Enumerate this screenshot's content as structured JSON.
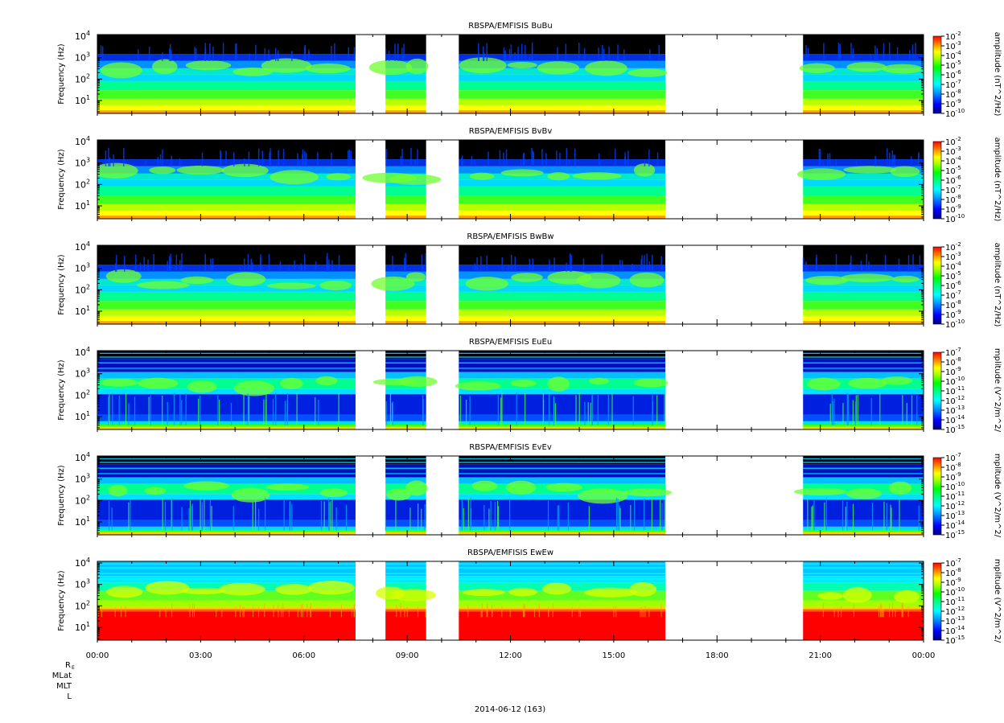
{
  "figure": {
    "date_label": "2014-06-12 (163)",
    "ephemeris_labels": [
      "RE",
      "MLat",
      "MLT",
      "L"
    ]
  },
  "chart_data": {
    "type": "heatmap",
    "x_axis": {
      "ticks": [
        "00:00",
        "03:00",
        "06:00",
        "09:00",
        "12:00",
        "15:00",
        "18:00",
        "21:00",
        "00:00"
      ],
      "range_hours": [
        0,
        24
      ]
    },
    "y_axis": {
      "label": "Frequency (Hz)",
      "scale": "log",
      "range_hz": [
        2.5,
        12000
      ],
      "ticks": [
        {
          "base": "10",
          "exp": "1"
        },
        {
          "base": "10",
          "exp": "2"
        },
        {
          "base": "10",
          "exp": "3"
        },
        {
          "base": "10",
          "exp": "4"
        }
      ]
    },
    "data_gaps_hours": [
      [
        7.5,
        8.37
      ],
      [
        9.55,
        10.5
      ],
      [
        16.5,
        20.5
      ]
    ],
    "colormap": [
      "#000080",
      "#0000ff",
      "#0080ff",
      "#00ffff",
      "#00ff80",
      "#00ff00",
      "#80ff00",
      "#ffff00",
      "#ff8000",
      "#ff0000"
    ],
    "panels": [
      {
        "title": "RBSPA/EMFISIS  BuBu",
        "kind": "B",
        "colorbar_label": "amplitude (nT^2/Hz)",
        "colorbar_ticks": [
          {
            "base": "10",
            "exp": "-2"
          },
          {
            "base": "10",
            "exp": "-3"
          },
          {
            "base": "10",
            "exp": "-4"
          },
          {
            "base": "10",
            "exp": "-5"
          },
          {
            "base": "10",
            "exp": "-6"
          },
          {
            "base": "10",
            "exp": "-7"
          },
          {
            "base": "10",
            "exp": "-8"
          },
          {
            "base": "10",
            "exp": "-9"
          },
          {
            "base": "10",
            "exp": "-10"
          }
        ]
      },
      {
        "title": "RBSPA/EMFISIS  BvBv",
        "kind": "B",
        "colorbar_label": "amplitude (nT^2/Hz)",
        "colorbar_ticks": [
          {
            "base": "10",
            "exp": "-2"
          },
          {
            "base": "10",
            "exp": "-3"
          },
          {
            "base": "10",
            "exp": "-4"
          },
          {
            "base": "10",
            "exp": "-5"
          },
          {
            "base": "10",
            "exp": "-6"
          },
          {
            "base": "10",
            "exp": "-7"
          },
          {
            "base": "10",
            "exp": "-8"
          },
          {
            "base": "10",
            "exp": "-9"
          },
          {
            "base": "10",
            "exp": "-10"
          }
        ]
      },
      {
        "title": "RBSPA/EMFISIS  BwBw",
        "kind": "B",
        "colorbar_label": "amplitude (nT^2/Hz)",
        "colorbar_ticks": [
          {
            "base": "10",
            "exp": "-2"
          },
          {
            "base": "10",
            "exp": "-3"
          },
          {
            "base": "10",
            "exp": "-4"
          },
          {
            "base": "10",
            "exp": "-5"
          },
          {
            "base": "10",
            "exp": "-6"
          },
          {
            "base": "10",
            "exp": "-7"
          },
          {
            "base": "10",
            "exp": "-8"
          },
          {
            "base": "10",
            "exp": "-9"
          },
          {
            "base": "10",
            "exp": "-10"
          }
        ]
      },
      {
        "title": "RBSPA/EMFISIS  EuEu",
        "kind": "E",
        "colorbar_label": "mplitude (V^2/m^2/",
        "colorbar_ticks": [
          {
            "base": "10",
            "exp": "-7"
          },
          {
            "base": "10",
            "exp": "-8"
          },
          {
            "base": "10",
            "exp": "-9"
          },
          {
            "base": "10",
            "exp": "-10"
          },
          {
            "base": "10",
            "exp": "-11"
          },
          {
            "base": "10",
            "exp": "-12"
          },
          {
            "base": "10",
            "exp": "-13"
          },
          {
            "base": "10",
            "exp": "-14"
          },
          {
            "base": "10",
            "exp": "-15"
          }
        ]
      },
      {
        "title": "RBSPA/EMFISIS  EvEv",
        "kind": "E",
        "colorbar_label": "mplitude (V^2/m^2/",
        "colorbar_ticks": [
          {
            "base": "10",
            "exp": "-7"
          },
          {
            "base": "10",
            "exp": "-8"
          },
          {
            "base": "10",
            "exp": "-9"
          },
          {
            "base": "10",
            "exp": "-10"
          },
          {
            "base": "10",
            "exp": "-11"
          },
          {
            "base": "10",
            "exp": "-12"
          },
          {
            "base": "10",
            "exp": "-13"
          },
          {
            "base": "10",
            "exp": "-14"
          },
          {
            "base": "10",
            "exp": "-15"
          }
        ]
      },
      {
        "title": "RBSPA/EMFISIS  EwEw",
        "kind": "Ew",
        "colorbar_label": "mplitude (V^2/m^2/",
        "colorbar_ticks": [
          {
            "base": "10",
            "exp": "-7"
          },
          {
            "base": "10",
            "exp": "-8"
          },
          {
            "base": "10",
            "exp": "-9"
          },
          {
            "base": "10",
            "exp": "-10"
          },
          {
            "base": "10",
            "exp": "-11"
          },
          {
            "base": "10",
            "exp": "-12"
          },
          {
            "base": "10",
            "exp": "-13"
          },
          {
            "base": "10",
            "exp": "-14"
          },
          {
            "base": "10",
            "exp": "-15"
          }
        ]
      }
    ]
  }
}
